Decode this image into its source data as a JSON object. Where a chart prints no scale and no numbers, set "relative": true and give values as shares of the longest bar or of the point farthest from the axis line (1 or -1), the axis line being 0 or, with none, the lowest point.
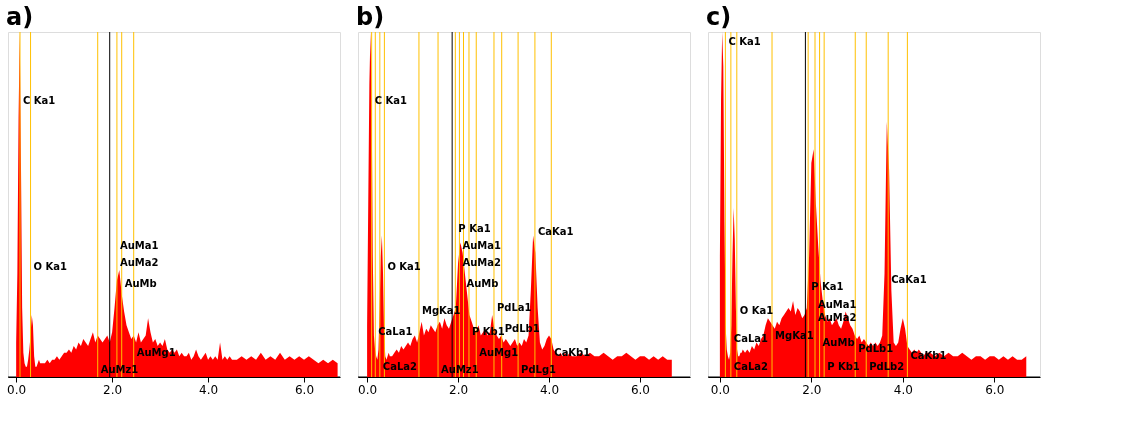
{
  "chart_data": [
    {
      "type": "area",
      "title": "a)",
      "relative": true,
      "xlim": [
        -0.17,
        6.75
      ],
      "xticks": [
        {
          "value": 0,
          "label": "0.0"
        },
        {
          "value": 2,
          "label": "2.0"
        },
        {
          "value": 4,
          "label": "4.0"
        },
        {
          "value": 6,
          "label": "6.0"
        }
      ],
      "grid": false,
      "x": [
        0,
        0.025,
        0.05,
        0.075,
        0.1,
        0.125,
        0.15,
        0.175,
        0.2,
        0.225,
        0.25,
        0.275,
        0.3,
        0.325,
        0.35,
        0.375,
        0.4,
        0.425,
        0.45,
        0.475,
        0.5,
        0.55,
        0.6,
        0.65,
        0.7,
        0.75,
        0.8,
        0.85,
        0.9,
        0.95,
        1.0,
        1.05,
        1.1,
        1.15,
        1.2,
        1.25,
        1.3,
        1.35,
        1.4,
        1.45,
        1.5,
        1.55,
        1.6,
        1.65,
        1.7,
        1.75,
        1.8,
        1.85,
        1.9,
        1.95,
        2.0,
        2.05,
        2.1,
        2.15,
        2.2,
        2.25,
        2.3,
        2.35,
        2.4,
        2.45,
        2.5,
        2.55,
        2.6,
        2.65,
        2.7,
        2.75,
        2.8,
        2.85,
        2.9,
        2.95,
        3.0,
        3.05,
        3.1,
        3.15,
        3.2,
        3.25,
        3.3,
        3.35,
        3.4,
        3.45,
        3.5,
        3.55,
        3.6,
        3.65,
        3.7,
        3.75,
        3.8,
        3.85,
        3.9,
        3.95,
        4.0,
        4.05,
        4.1,
        4.15,
        4.2,
        4.25,
        4.3,
        4.35,
        4.4,
        4.45,
        4.5,
        4.6,
        4.7,
        4.8,
        4.9,
        5.0,
        5.1,
        5.2,
        5.3,
        5.4,
        5.5,
        5.6,
        5.7,
        5.8,
        5.9,
        6.0,
        6.1,
        6.2,
        6.3,
        6.4,
        6.5,
        6.6,
        6.7
      ],
      "series": [
        {
          "color": "#ff0000",
          "values": [
            0.1,
            0.3,
            0.75,
            1.0,
            0.62,
            0.2,
            0.07,
            0.04,
            0.03,
            0.03,
            0.05,
            0.08,
            0.12,
            0.18,
            0.15,
            0.06,
            0.03,
            0.03,
            0.04,
            0.05,
            0.04,
            0.04,
            0.04,
            0.05,
            0.04,
            0.05,
            0.05,
            0.06,
            0.05,
            0.06,
            0.07,
            0.07,
            0.08,
            0.07,
            0.09,
            0.08,
            0.1,
            0.09,
            0.11,
            0.1,
            0.09,
            0.11,
            0.13,
            0.1,
            0.12,
            0.11,
            0.1,
            0.11,
            0.12,
            0.1,
            0.13,
            0.2,
            0.28,
            0.31,
            0.24,
            0.19,
            0.15,
            0.13,
            0.11,
            0.12,
            0.1,
            0.13,
            0.1,
            0.11,
            0.12,
            0.17,
            0.13,
            0.1,
            0.11,
            0.09,
            0.1,
            0.09,
            0.11,
            0.08,
            0.07,
            0.08,
            0.07,
            0.08,
            0.06,
            0.07,
            0.06,
            0.06,
            0.07,
            0.05,
            0.06,
            0.08,
            0.06,
            0.05,
            0.06,
            0.07,
            0.05,
            0.06,
            0.05,
            0.06,
            0.05,
            0.1,
            0.05,
            0.06,
            0.05,
            0.06,
            0.05,
            0.05,
            0.06,
            0.05,
            0.06,
            0.05,
            0.07,
            0.05,
            0.06,
            0.05,
            0.07,
            0.05,
            0.06,
            0.05,
            0.06,
            0.05,
            0.06,
            0.05,
            0.04,
            0.05,
            0.04,
            0.05,
            0.04
          ]
        }
      ],
      "ref_lines": [
        {
          "axis": "x",
          "value": 1.95,
          "label": null,
          "color": "#000000"
        },
        {
          "axis": "x",
          "value": 0.08,
          "label": null,
          "color": "#ffc000"
        },
        {
          "axis": "x",
          "value": 0.3,
          "label": null,
          "color": "#ffc000"
        },
        {
          "axis": "x",
          "value": 2.1,
          "label": null,
          "color": "#ffc000"
        },
        {
          "axis": "x",
          "value": 2.2,
          "label": null,
          "color": "#ffc000"
        },
        {
          "axis": "x",
          "value": 2.45,
          "label": null,
          "color": "#ffc000"
        },
        {
          "axis": "x",
          "value": 1.7,
          "label": null,
          "color": "#ffc000"
        }
      ],
      "annotations": [
        {
          "text": "C Ka1",
          "x": 0.08,
          "y": 0.8
        },
        {
          "text": "O Ka1",
          "x": 0.3,
          "y": 0.32
        },
        {
          "text": "AuMa1",
          "x": 2.1,
          "y": 0.38
        },
        {
          "text": "AuMa2",
          "x": 2.1,
          "y": 0.33
        },
        {
          "text": "AuMb",
          "x": 2.2,
          "y": 0.27
        },
        {
          "text": "AuMg1",
          "x": 2.45,
          "y": 0.07
        },
        {
          "text": "AuMz1",
          "x": 1.7,
          "y": 0.02
        }
      ]
    },
    {
      "type": "area",
      "title": "b)",
      "relative": true,
      "xlim": [
        -0.2,
        7.1
      ],
      "xticks": [
        {
          "value": 0,
          "label": "0.0"
        },
        {
          "value": 2,
          "label": "2.0"
        },
        {
          "value": 4,
          "label": "4.0"
        },
        {
          "value": 6,
          "label": "6.0"
        }
      ],
      "grid": false,
      "x": [
        0,
        0.025,
        0.05,
        0.075,
        0.1,
        0.125,
        0.15,
        0.175,
        0.2,
        0.225,
        0.25,
        0.275,
        0.3,
        0.325,
        0.35,
        0.375,
        0.4,
        0.425,
        0.45,
        0.475,
        0.5,
        0.55,
        0.6,
        0.65,
        0.7,
        0.75,
        0.8,
        0.85,
        0.9,
        0.95,
        1.0,
        1.05,
        1.1,
        1.15,
        1.2,
        1.25,
        1.3,
        1.35,
        1.4,
        1.45,
        1.5,
        1.55,
        1.6,
        1.65,
        1.7,
        1.75,
        1.8,
        1.85,
        1.9,
        1.95,
        2.0,
        2.05,
        2.1,
        2.15,
        2.2,
        2.25,
        2.3,
        2.35,
        2.4,
        2.45,
        2.5,
        2.55,
        2.6,
        2.65,
        2.7,
        2.75,
        2.8,
        2.85,
        2.9,
        2.95,
        3.0,
        3.05,
        3.1,
        3.15,
        3.2,
        3.25,
        3.3,
        3.35,
        3.4,
        3.45,
        3.5,
        3.55,
        3.6,
        3.65,
        3.7,
        3.75,
        3.8,
        3.85,
        3.9,
        3.95,
        4.0,
        4.05,
        4.1,
        4.15,
        4.2,
        4.25,
        4.3,
        4.35,
        4.4,
        4.45,
        4.5,
        4.6,
        4.7,
        4.8,
        4.9,
        5.0,
        5.1,
        5.2,
        5.3,
        5.4,
        5.5,
        5.6,
        5.7,
        5.8,
        5.9,
        6.0,
        6.1,
        6.2,
        6.3,
        6.4,
        6.5,
        6.6,
        6.7
      ],
      "series": [
        {
          "color": "#ff0000",
          "values": [
            0.15,
            0.5,
            0.85,
            1.0,
            0.8,
            0.35,
            0.12,
            0.08,
            0.06,
            0.05,
            0.08,
            0.2,
            0.35,
            0.41,
            0.3,
            0.12,
            0.06,
            0.05,
            0.06,
            0.07,
            0.06,
            0.06,
            0.07,
            0.08,
            0.07,
            0.09,
            0.08,
            0.09,
            0.1,
            0.09,
            0.11,
            0.12,
            0.1,
            0.13,
            0.16,
            0.12,
            0.14,
            0.13,
            0.15,
            0.14,
            0.13,
            0.15,
            0.16,
            0.14,
            0.17,
            0.15,
            0.14,
            0.16,
            0.18,
            0.2,
            0.33,
            0.39,
            0.36,
            0.3,
            0.24,
            0.18,
            0.16,
            0.14,
            0.13,
            0.15,
            0.12,
            0.13,
            0.14,
            0.12,
            0.13,
            0.18,
            0.14,
            0.12,
            0.11,
            0.12,
            0.1,
            0.11,
            0.1,
            0.09,
            0.1,
            0.11,
            0.09,
            0.1,
            0.09,
            0.11,
            0.1,
            0.12,
            0.25,
            0.41,
            0.36,
            0.2,
            0.1,
            0.08,
            0.09,
            0.11,
            0.12,
            0.11,
            0.08,
            0.07,
            0.06,
            0.07,
            0.06,
            0.07,
            0.06,
            0.07,
            0.06,
            0.06,
            0.07,
            0.06,
            0.07,
            0.06,
            0.06,
            0.07,
            0.06,
            0.05,
            0.06,
            0.06,
            0.07,
            0.06,
            0.05,
            0.06,
            0.06,
            0.05,
            0.06,
            0.05,
            0.06,
            0.05,
            0.05
          ]
        }
      ],
      "ref_lines": [
        {
          "axis": "x",
          "value": 1.87,
          "label": null,
          "color": "#000000"
        },
        {
          "axis": "x",
          "value": 0.1,
          "label": null,
          "color": "#ffc000"
        },
        {
          "axis": "x",
          "value": 0.38,
          "label": null,
          "color": "#ffc000"
        },
        {
          "axis": "x",
          "value": 0.18,
          "label": null,
          "color": "#ffc000"
        },
        {
          "axis": "x",
          "value": 0.28,
          "label": null,
          "color": "#ffc000"
        },
        {
          "axis": "x",
          "value": 1.14,
          "label": null,
          "color": "#ffc000"
        },
        {
          "axis": "x",
          "value": 1.94,
          "label": null,
          "color": "#ffc000"
        },
        {
          "axis": "x",
          "value": 2.03,
          "label": null,
          "color": "#ffc000"
        },
        {
          "axis": "x",
          "value": 2.12,
          "label": null,
          "color": "#ffc000"
        },
        {
          "axis": "x",
          "value": 2.24,
          "label": null,
          "color": "#ffc000"
        },
        {
          "axis": "x",
          "value": 1.56,
          "label": null,
          "color": "#ffc000"
        },
        {
          "axis": "x",
          "value": 2.4,
          "label": null,
          "color": "#ffc000"
        },
        {
          "axis": "x",
          "value": 2.79,
          "label": null,
          "color": "#ffc000"
        },
        {
          "axis": "x",
          "value": 2.96,
          "label": null,
          "color": "#ffc000"
        },
        {
          "axis": "x",
          "value": 3.32,
          "label": null,
          "color": "#ffc000"
        },
        {
          "axis": "x",
          "value": 3.69,
          "label": null,
          "color": "#ffc000"
        },
        {
          "axis": "x",
          "value": 4.05,
          "label": null,
          "color": "#ffc000"
        }
      ],
      "annotations": [
        {
          "text": "C Ka1",
          "x": 0.1,
          "y": 0.8
        },
        {
          "text": "O Ka1",
          "x": 0.38,
          "y": 0.32
        },
        {
          "text": "CaLa1",
          "x": 0.18,
          "y": 0.13
        },
        {
          "text": "CaLa2",
          "x": 0.28,
          "y": 0.03
        },
        {
          "text": "MgKa1",
          "x": 1.14,
          "y": 0.19
        },
        {
          "text": "P Ka1",
          "x": 1.94,
          "y": 0.43
        },
        {
          "text": "AuMa1",
          "x": 2.03,
          "y": 0.38
        },
        {
          "text": "AuMa2",
          "x": 2.03,
          "y": 0.33
        },
        {
          "text": "AuMb",
          "x": 2.12,
          "y": 0.27
        },
        {
          "text": "P Kb1",
          "x": 2.24,
          "y": 0.13
        },
        {
          "text": "AuMz1",
          "x": 1.56,
          "y": 0.02
        },
        {
          "text": "AuMg1",
          "x": 2.4,
          "y": 0.07
        },
        {
          "text": "PdLa1",
          "x": 2.79,
          "y": 0.2
        },
        {
          "text": "PdLb1",
          "x": 2.96,
          "y": 0.14
        },
        {
          "text": "PdLg1",
          "x": 3.32,
          "y": 0.02
        },
        {
          "text": "CaKa1",
          "x": 3.69,
          "y": 0.42
        },
        {
          "text": "CaKb1",
          "x": 4.05,
          "y": 0.07
        }
      ]
    },
    {
      "type": "area",
      "title": "c)",
      "relative": true,
      "xlim": [
        -0.26,
        7.0
      ],
      "xticks": [
        {
          "value": 0,
          "label": "0.0"
        },
        {
          "value": 2,
          "label": "2.0"
        },
        {
          "value": 4,
          "label": "4.0"
        },
        {
          "value": 6,
          "label": "6.0"
        }
      ],
      "grid": false,
      "x": [
        0,
        0.025,
        0.05,
        0.075,
        0.1,
        0.125,
        0.15,
        0.175,
        0.2,
        0.225,
        0.25,
        0.275,
        0.3,
        0.325,
        0.35,
        0.375,
        0.4,
        0.425,
        0.45,
        0.475,
        0.5,
        0.55,
        0.6,
        0.65,
        0.7,
        0.75,
        0.8,
        0.85,
        0.9,
        0.95,
        1.0,
        1.05,
        1.1,
        1.15,
        1.2,
        1.25,
        1.3,
        1.35,
        1.4,
        1.45,
        1.5,
        1.55,
        1.6,
        1.65,
        1.7,
        1.75,
        1.8,
        1.85,
        1.9,
        1.95,
        2.0,
        2.05,
        2.1,
        2.15,
        2.2,
        2.25,
        2.3,
        2.35,
        2.4,
        2.45,
        2.5,
        2.55,
        2.6,
        2.65,
        2.7,
        2.75,
        2.8,
        2.85,
        2.9,
        2.95,
        3.0,
        3.05,
        3.1,
        3.15,
        3.2,
        3.25,
        3.3,
        3.35,
        3.4,
        3.45,
        3.5,
        3.55,
        3.6,
        3.65,
        3.7,
        3.75,
        3.8,
        3.85,
        3.9,
        3.95,
        4.0,
        4.05,
        4.1,
        4.15,
        4.2,
        4.25,
        4.3,
        4.35,
        4.4,
        4.45,
        4.5,
        4.6,
        4.7,
        4.8,
        4.9,
        5.0,
        5.1,
        5.2,
        5.3,
        5.4,
        5.5,
        5.6,
        5.7,
        5.8,
        5.9,
        6.0,
        6.1,
        6.2,
        6.3,
        6.4,
        6.5,
        6.6,
        6.7
      ],
      "series": [
        {
          "color": "#ff0000",
          "values": [
            0.35,
            0.8,
            1.0,
            0.9,
            0.45,
            0.15,
            0.08,
            0.06,
            0.05,
            0.07,
            0.15,
            0.35,
            0.49,
            0.4,
            0.2,
            0.08,
            0.06,
            0.06,
            0.07,
            0.07,
            0.08,
            0.07,
            0.08,
            0.07,
            0.09,
            0.08,
            0.1,
            0.09,
            0.11,
            0.12,
            0.15,
            0.17,
            0.16,
            0.15,
            0.14,
            0.16,
            0.15,
            0.17,
            0.18,
            0.19,
            0.2,
            0.19,
            0.22,
            0.18,
            0.2,
            0.19,
            0.17,
            0.18,
            0.2,
            0.35,
            0.62,
            0.66,
            0.5,
            0.38,
            0.28,
            0.22,
            0.18,
            0.16,
            0.17,
            0.15,
            0.16,
            0.17,
            0.15,
            0.14,
            0.16,
            0.19,
            0.17,
            0.15,
            0.14,
            0.12,
            0.11,
            0.12,
            0.1,
            0.11,
            0.1,
            0.09,
            0.1,
            0.09,
            0.1,
            0.09,
            0.1,
            0.12,
            0.3,
            0.74,
            0.6,
            0.25,
            0.1,
            0.09,
            0.1,
            0.14,
            0.17,
            0.14,
            0.09,
            0.08,
            0.07,
            0.08,
            0.07,
            0.08,
            0.07,
            0.06,
            0.07,
            0.07,
            0.06,
            0.07,
            0.06,
            0.07,
            0.06,
            0.06,
            0.07,
            0.06,
            0.05,
            0.06,
            0.06,
            0.05,
            0.06,
            0.06,
            0.05,
            0.06,
            0.05,
            0.06,
            0.05,
            0.05,
            0.06
          ]
        }
      ],
      "ref_lines": [
        {
          "axis": "x",
          "value": 1.87,
          "label": null,
          "color": "#000000"
        },
        {
          "axis": "x",
          "value": 0.12,
          "label": null,
          "color": "#ffc000"
        },
        {
          "axis": "x",
          "value": 0.37,
          "label": null,
          "color": "#ffc000"
        },
        {
          "axis": "x",
          "value": 0.24,
          "label": null,
          "color": "#ffc000"
        },
        {
          "axis": "x",
          "value": 1.14,
          "label": null,
          "color": "#ffc000"
        },
        {
          "axis": "x",
          "value": 1.93,
          "label": null,
          "color": "#ffc000"
        },
        {
          "axis": "x",
          "value": 2.08,
          "label": null,
          "color": "#ffc000"
        },
        {
          "axis": "x",
          "value": 2.18,
          "label": null,
          "color": "#ffc000"
        },
        {
          "axis": "x",
          "value": 2.28,
          "label": null,
          "color": "#ffc000"
        },
        {
          "axis": "x",
          "value": 2.96,
          "label": null,
          "color": "#ffc000"
        },
        {
          "axis": "x",
          "value": 3.2,
          "label": null,
          "color": "#ffc000"
        },
        {
          "axis": "x",
          "value": 3.68,
          "label": null,
          "color": "#ffc000"
        },
        {
          "axis": "x",
          "value": 4.1,
          "label": null,
          "color": "#ffc000"
        }
      ],
      "annotations": [
        {
          "text": "C Ka1",
          "x": 0.12,
          "y": 0.97
        },
        {
          "text": "O Ka1",
          "x": 0.37,
          "y": 0.19
        },
        {
          "text": "CaLa1",
          "x": 0.24,
          "y": 0.11
        },
        {
          "text": "CaLa2",
          "x": 0.24,
          "y": 0.03
        },
        {
          "text": "MgKa1",
          "x": 1.14,
          "y": 0.12
        },
        {
          "text": "P Ka1",
          "x": 1.93,
          "y": 0.26
        },
        {
          "text": "AuMa1",
          "x": 2.08,
          "y": 0.21
        },
        {
          "text": "AuMa2",
          "x": 2.08,
          "y": 0.17
        },
        {
          "text": "AuMb",
          "x": 2.18,
          "y": 0.1
        },
        {
          "text": "P Kb1",
          "x": 2.28,
          "y": 0.03
        },
        {
          "text": "PdLb1",
          "x": 2.96,
          "y": 0.08
        },
        {
          "text": "PdLb2",
          "x": 3.2,
          "y": 0.03
        },
        {
          "text": "CaKa1",
          "x": 3.68,
          "y": 0.28
        },
        {
          "text": "CaKb1",
          "x": 4.1,
          "y": 0.06
        }
      ]
    }
  ]
}
